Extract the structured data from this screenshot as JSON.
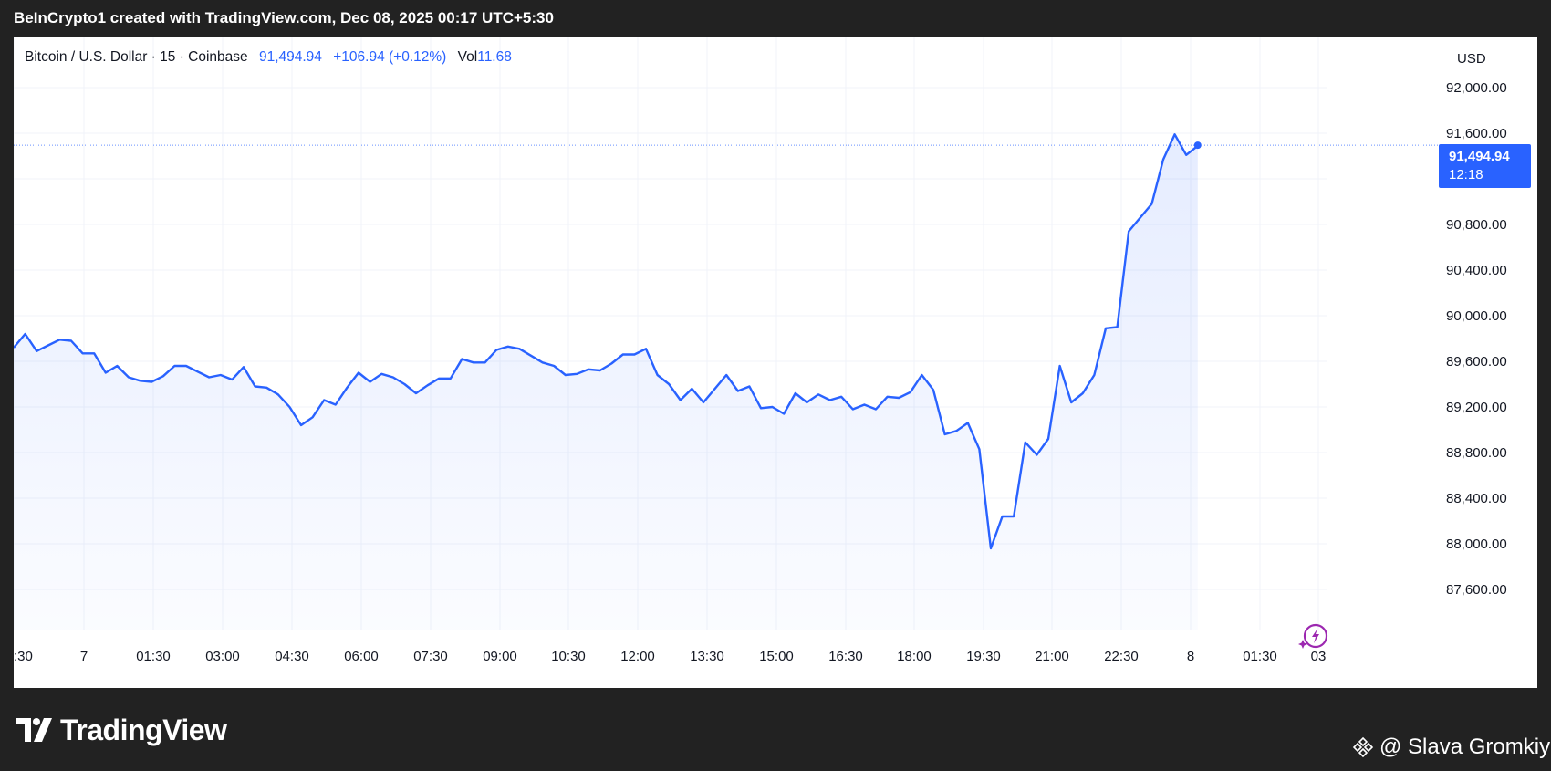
{
  "header": {
    "caption": "BeInCrypto1 created with TradingView.com, Dec 08, 2025 00:17 UTC+5:30"
  },
  "legend": {
    "symbol": "Bitcoin / U.S. Dollar · 15 · Coinbase",
    "price": "91,494.94",
    "change": "+106.94 (+0.12%)",
    "vol_label": "Vol",
    "vol_value": "11.68"
  },
  "axis": {
    "currency": "USD"
  },
  "last_price": {
    "price": "91,494.94",
    "countdown": "12:18"
  },
  "footer": {
    "logo_text": "TradingView",
    "watermark": "@ Slava Gromkiy"
  },
  "colors": {
    "line": "#2962ff",
    "badge": "#2962ff",
    "background": "#222222"
  },
  "chart_data": {
    "type": "area",
    "title": "Bitcoin / U.S. Dollar · 15 · Coinbase",
    "xlabel": "",
    "ylabel": "",
    "ylim": [
      87500,
      92400
    ],
    "y_ticks": [
      "92,000.00",
      "91,600.00",
      "91,200.00",
      "90,800.00",
      "90,400.00",
      "90,000.00",
      "89,600.00",
      "89,200.00",
      "88,800.00",
      "88,400.00",
      "88,000.00",
      "87,600.00"
    ],
    "x_ticks": [
      ":30",
      "7",
      "01:30",
      "03:00",
      "04:30",
      "06:00",
      "07:30",
      "09:00",
      "10:30",
      "12:00",
      "13:30",
      "15:00",
      "16:30",
      "18:00",
      "19:30",
      "21:00",
      "22:30",
      "8",
      "01:30",
      "03"
    ],
    "grid": true,
    "series": [
      {
        "values": [
          89720,
          89840,
          89690,
          89740,
          89790,
          89780,
          89670,
          89670,
          89500,
          89560,
          89460,
          89430,
          89420,
          89470,
          89560,
          89560,
          89510,
          89460,
          89480,
          89440,
          89550,
          89380,
          89370,
          89310,
          89200,
          89040,
          89110,
          89260,
          89220,
          89370,
          89500,
          89420,
          89490,
          89460,
          89400,
          89320,
          89390,
          89450,
          89450,
          89620,
          89590,
          89590,
          89700,
          89730,
          89710,
          89650,
          89590,
          89560,
          89480,
          89490,
          89530,
          89520,
          89580,
          89660,
          89660,
          89710,
          89480,
          89400,
          89260,
          89360,
          89240,
          89360,
          89480,
          89340,
          89380,
          89190,
          89200,
          89140,
          89320,
          89240,
          89310,
          89260,
          89290,
          89180,
          89220,
          89180,
          89290,
          89280,
          89330,
          89480,
          89350,
          88960,
          88990,
          89060,
          88830,
          87960,
          88240,
          88240,
          88890,
          88780,
          88920,
          89560,
          89240,
          89320,
          89480,
          89890,
          89900,
          90740,
          90860,
          90980,
          91370,
          91590,
          91410,
          91490
        ]
      }
    ],
    "last_value": 91494.94
  }
}
